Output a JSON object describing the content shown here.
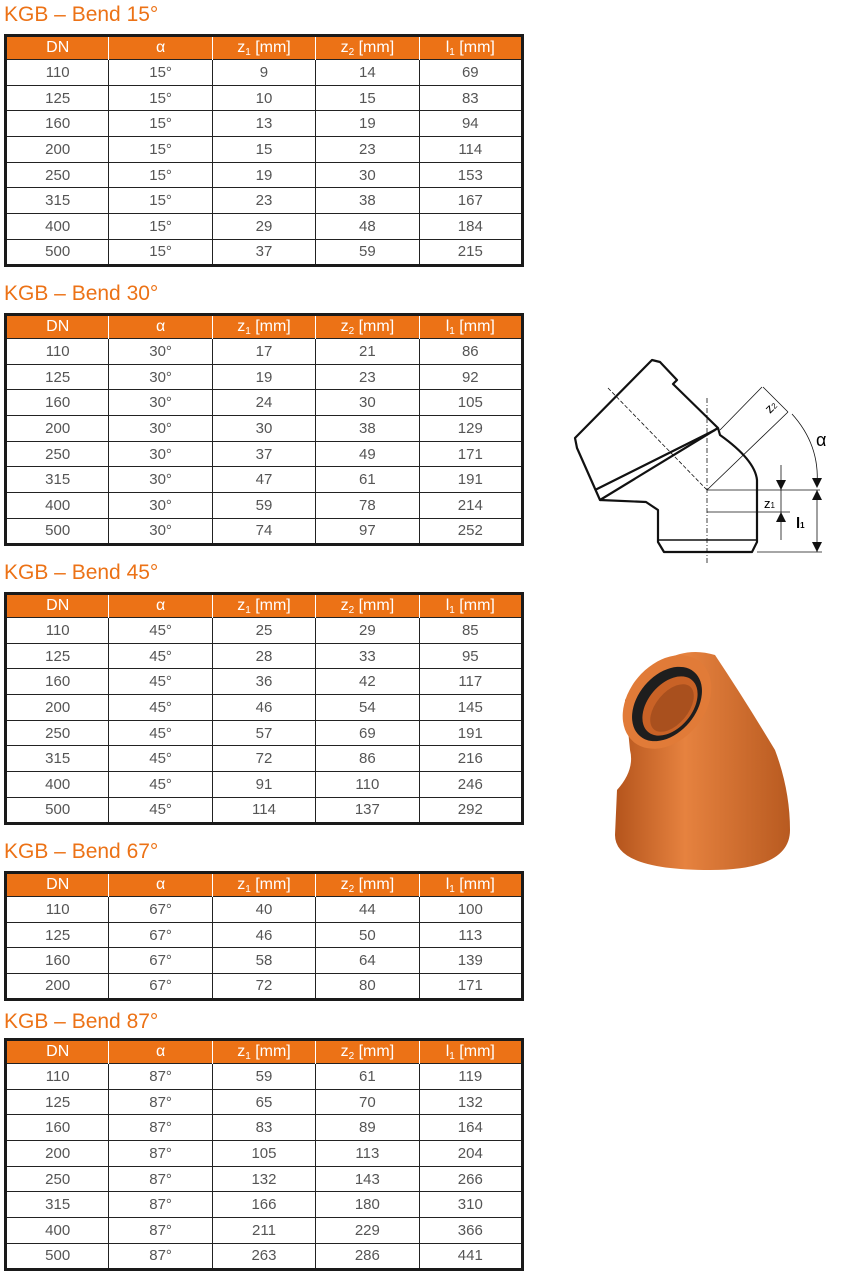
{
  "columns": [
    {
      "text": "DN",
      "sub": "",
      "suffix": ""
    },
    {
      "text": "α",
      "sub": "",
      "suffix": ""
    },
    {
      "text": "z",
      "sub": "1",
      "suffix": " [mm]"
    },
    {
      "text": "z",
      "sub": "2",
      "suffix": " [mm]"
    },
    {
      "text": "l",
      "sub": "1",
      "suffix": " [mm]"
    }
  ],
  "colors": {
    "accent": "#EC7216",
    "border": "#1a1a1a",
    "pipe": "#D9702A"
  },
  "tables": [
    {
      "title": "KGB – Bend 15°",
      "rows": [
        [
          "110",
          "15°",
          "9",
          "14",
          "69"
        ],
        [
          "125",
          "15°",
          "10",
          "15",
          "83"
        ],
        [
          "160",
          "15°",
          "13",
          "19",
          "94"
        ],
        [
          "200",
          "15°",
          "15",
          "23",
          "114"
        ],
        [
          "250",
          "15°",
          "19",
          "30",
          "153"
        ],
        [
          "315",
          "15°",
          "23",
          "38",
          "167"
        ],
        [
          "400",
          "15°",
          "29",
          "48",
          "184"
        ],
        [
          "500",
          "15°",
          "37",
          "59",
          "215"
        ]
      ]
    },
    {
      "title": "KGB – Bend 30°",
      "rows": [
        [
          "110",
          "30°",
          "17",
          "21",
          "86"
        ],
        [
          "125",
          "30°",
          "19",
          "23",
          "92"
        ],
        [
          "160",
          "30°",
          "24",
          "30",
          "105"
        ],
        [
          "200",
          "30°",
          "30",
          "38",
          "129"
        ],
        [
          "250",
          "30°",
          "37",
          "49",
          "171"
        ],
        [
          "315",
          "30°",
          "47",
          "61",
          "191"
        ],
        [
          "400",
          "30°",
          "59",
          "78",
          "214"
        ],
        [
          "500",
          "30°",
          "74",
          "97",
          "252"
        ]
      ]
    },
    {
      "title": "KGB – Bend 45°",
      "rows": [
        [
          "110",
          "45°",
          "25",
          "29",
          "85"
        ],
        [
          "125",
          "45°",
          "28",
          "33",
          "95"
        ],
        [
          "160",
          "45°",
          "36",
          "42",
          "117"
        ],
        [
          "200",
          "45°",
          "46",
          "54",
          "145"
        ],
        [
          "250",
          "45°",
          "57",
          "69",
          "191"
        ],
        [
          "315",
          "45°",
          "72",
          "86",
          "216"
        ],
        [
          "400",
          "45°",
          "91",
          "110",
          "246"
        ],
        [
          "500",
          "45°",
          "114",
          "137",
          "292"
        ]
      ]
    },
    {
      "title": "KGB – Bend 67°",
      "rows": [
        [
          "110",
          "67°",
          "40",
          "44",
          "100"
        ],
        [
          "125",
          "67°",
          "46",
          "50",
          "113"
        ],
        [
          "160",
          "67°",
          "58",
          "64",
          "139"
        ],
        [
          "200",
          "67°",
          "72",
          "80",
          "171"
        ]
      ]
    },
    {
      "title": "KGB – Bend 87°",
      "rows": [
        [
          "110",
          "87°",
          "59",
          "61",
          "119"
        ],
        [
          "125",
          "87°",
          "65",
          "70",
          "132"
        ],
        [
          "160",
          "87°",
          "83",
          "89",
          "164"
        ],
        [
          "200",
          "87°",
          "105",
          "113",
          "204"
        ],
        [
          "250",
          "87°",
          "132",
          "143",
          "266"
        ],
        [
          "315",
          "87°",
          "166",
          "180",
          "310"
        ],
        [
          "400",
          "87°",
          "211",
          "229",
          "366"
        ],
        [
          "500",
          "87°",
          "263",
          "286",
          "441"
        ]
      ]
    }
  ],
  "diagram": {
    "labels": {
      "z2": "z",
      "z2_sub": "2",
      "alpha": "α",
      "z1": "z",
      "z1_sub": "1",
      "l1": "l",
      "l1_sub": "1"
    }
  }
}
